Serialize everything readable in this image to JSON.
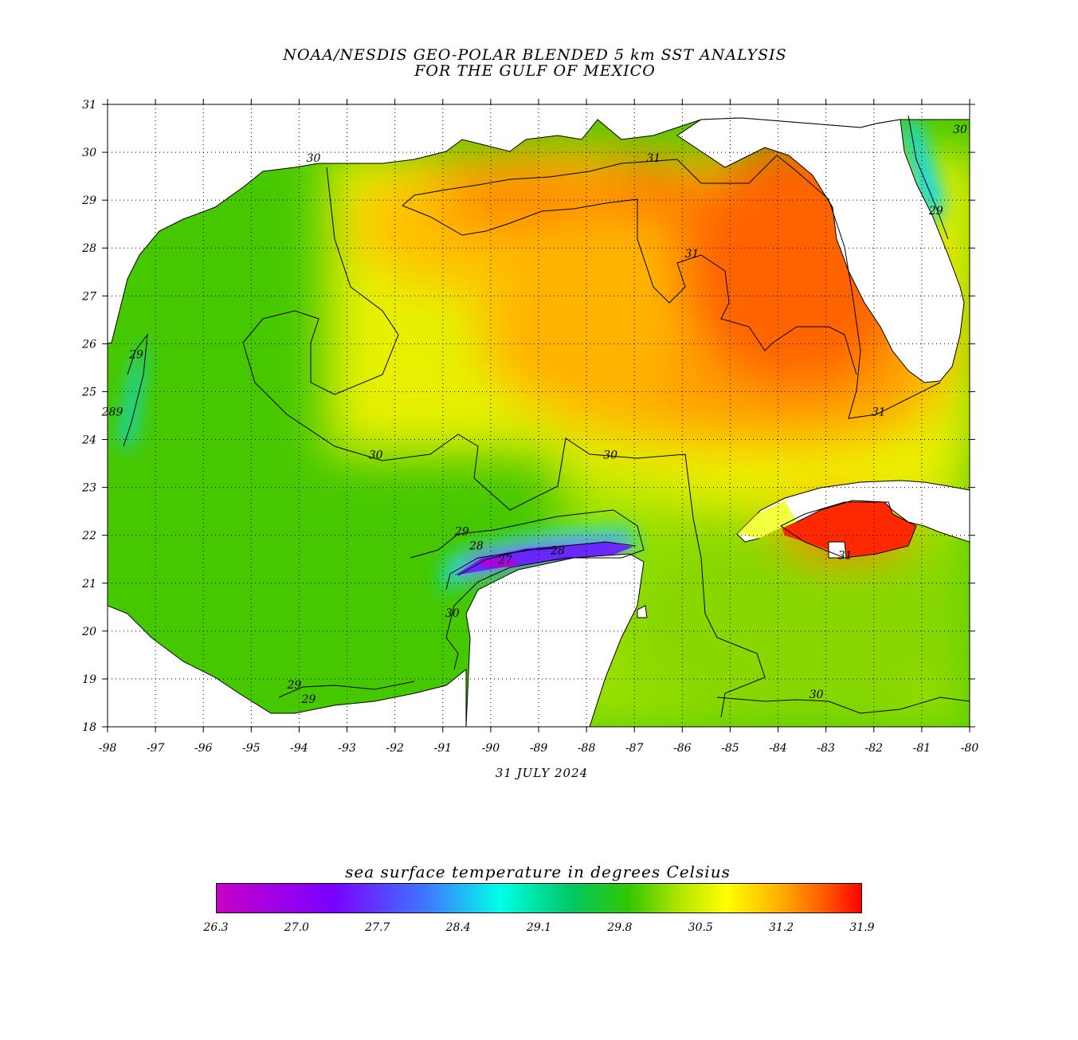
{
  "title_line1": "NOAA/NESDIS GEO-POLAR BLENDED 5 km SST ANALYSIS",
  "title_line2": "FOR THE GULF OF MEXICO",
  "date": "31 JULY 2024",
  "longitude_labels": [
    "-98",
    "-97",
    "-96",
    "-95",
    "-94",
    "-93",
    "-92",
    "-91",
    "-90",
    "-89",
    "-88",
    "-87",
    "-86",
    "-85",
    "-84",
    "-83",
    "-82",
    "-81",
    "-80"
  ],
  "latitude_labels": [
    "31",
    "30",
    "29",
    "28",
    "27",
    "26",
    "25",
    "24",
    "23",
    "22",
    "21",
    "20",
    "19",
    "18"
  ],
  "contour_labels": [
    {
      "text": "31",
      "lon": -86.6,
      "lat": 29.8
    },
    {
      "text": "31",
      "lon": -85.8,
      "lat": 27.8
    },
    {
      "text": "31",
      "lon": -81.9,
      "lat": 24.5
    },
    {
      "text": "31",
      "lon": -82.6,
      "lat": 21.5
    },
    {
      "text": "30",
      "lon": -93.7,
      "lat": 29.8
    },
    {
      "text": "30",
      "lon": -92.4,
      "lat": 23.6
    },
    {
      "text": "30",
      "lon": -87.5,
      "lat": 23.6
    },
    {
      "text": "30",
      "lon": -83.2,
      "lat": 18.6
    },
    {
      "text": "30",
      "lon": -90.8,
      "lat": 20.3
    },
    {
      "text": "30",
      "lon": -80.2,
      "lat": 30.4
    },
    {
      "text": "29",
      "lon": -97.4,
      "lat": 25.7
    },
    {
      "text": "29",
      "lon": -90.6,
      "lat": 22.0
    },
    {
      "text": "29",
      "lon": -94.1,
      "lat": 18.8
    },
    {
      "text": "29",
      "lon": -93.8,
      "lat": 18.5
    },
    {
      "text": "29",
      "lon": -80.7,
      "lat": 28.7
    },
    {
      "text": "28",
      "lon": -90.3,
      "lat": 21.7
    },
    {
      "text": "28",
      "lon": -88.6,
      "lat": 21.6
    },
    {
      "text": "27",
      "lon": -89.7,
      "lat": 21.4
    },
    {
      "text": "289",
      "lon": -97.9,
      "lat": 24.5
    }
  ],
  "colorbar": {
    "title": "sea surface temperature in degrees Celsius",
    "labels": [
      "26.3",
      "27.0",
      "27.7",
      "28.4",
      "29.1",
      "29.8",
      "30.5",
      "31.2",
      "31.9"
    ],
    "min": 26.3,
    "max": 31.9
  },
  "colors": {
    "warmest": "#ff2000",
    "warm": "#ff9c00",
    "mid": "#e0f000",
    "cool": "#3cc800",
    "cold": "#00f0e6",
    "coldest": "#8000ff",
    "land": "#ffffff"
  }
}
